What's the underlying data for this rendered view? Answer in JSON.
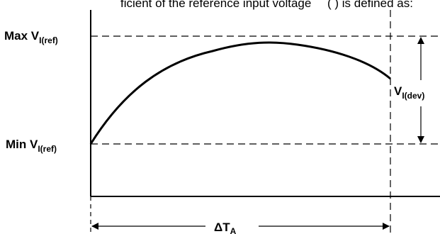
{
  "header": {
    "caption": "ficient of the reference input voltage",
    "symbol": "(   ) is defined as:"
  },
  "labels": {
    "max_main": "Max V",
    "max_sub": "I(ref)",
    "min_main": "Min V",
    "min_sub": "I(ref)",
    "dev_main": "V",
    "dev_sub": "I(dev)",
    "delta_main": "ΔT",
    "delta_sub": "A"
  }
}
